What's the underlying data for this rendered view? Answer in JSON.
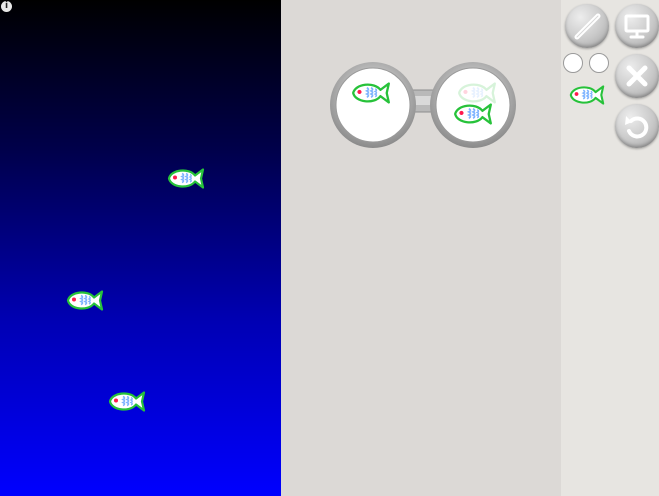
{
  "info": {
    "glyph": "i"
  },
  "colors": {
    "fish_outline": "#27c23a",
    "fish_belly": "#8fc0ff",
    "fish_eye": "#ff1a4d",
    "ocean_top": "#000000",
    "ocean_bottom": "#0000ff"
  },
  "ocean": {
    "fish_count": 3
  },
  "toolbar": {
    "buttons": [
      {
        "name": "pencil-button",
        "icon": "pencil-icon"
      },
      {
        "name": "screen-button",
        "icon": "monitor-icon"
      },
      {
        "name": "delete-button",
        "icon": "close-icon"
      },
      {
        "name": "undo-button",
        "icon": "undo-icon"
      }
    ],
    "slots": 2
  },
  "goggles": {
    "lenses": 2
  }
}
